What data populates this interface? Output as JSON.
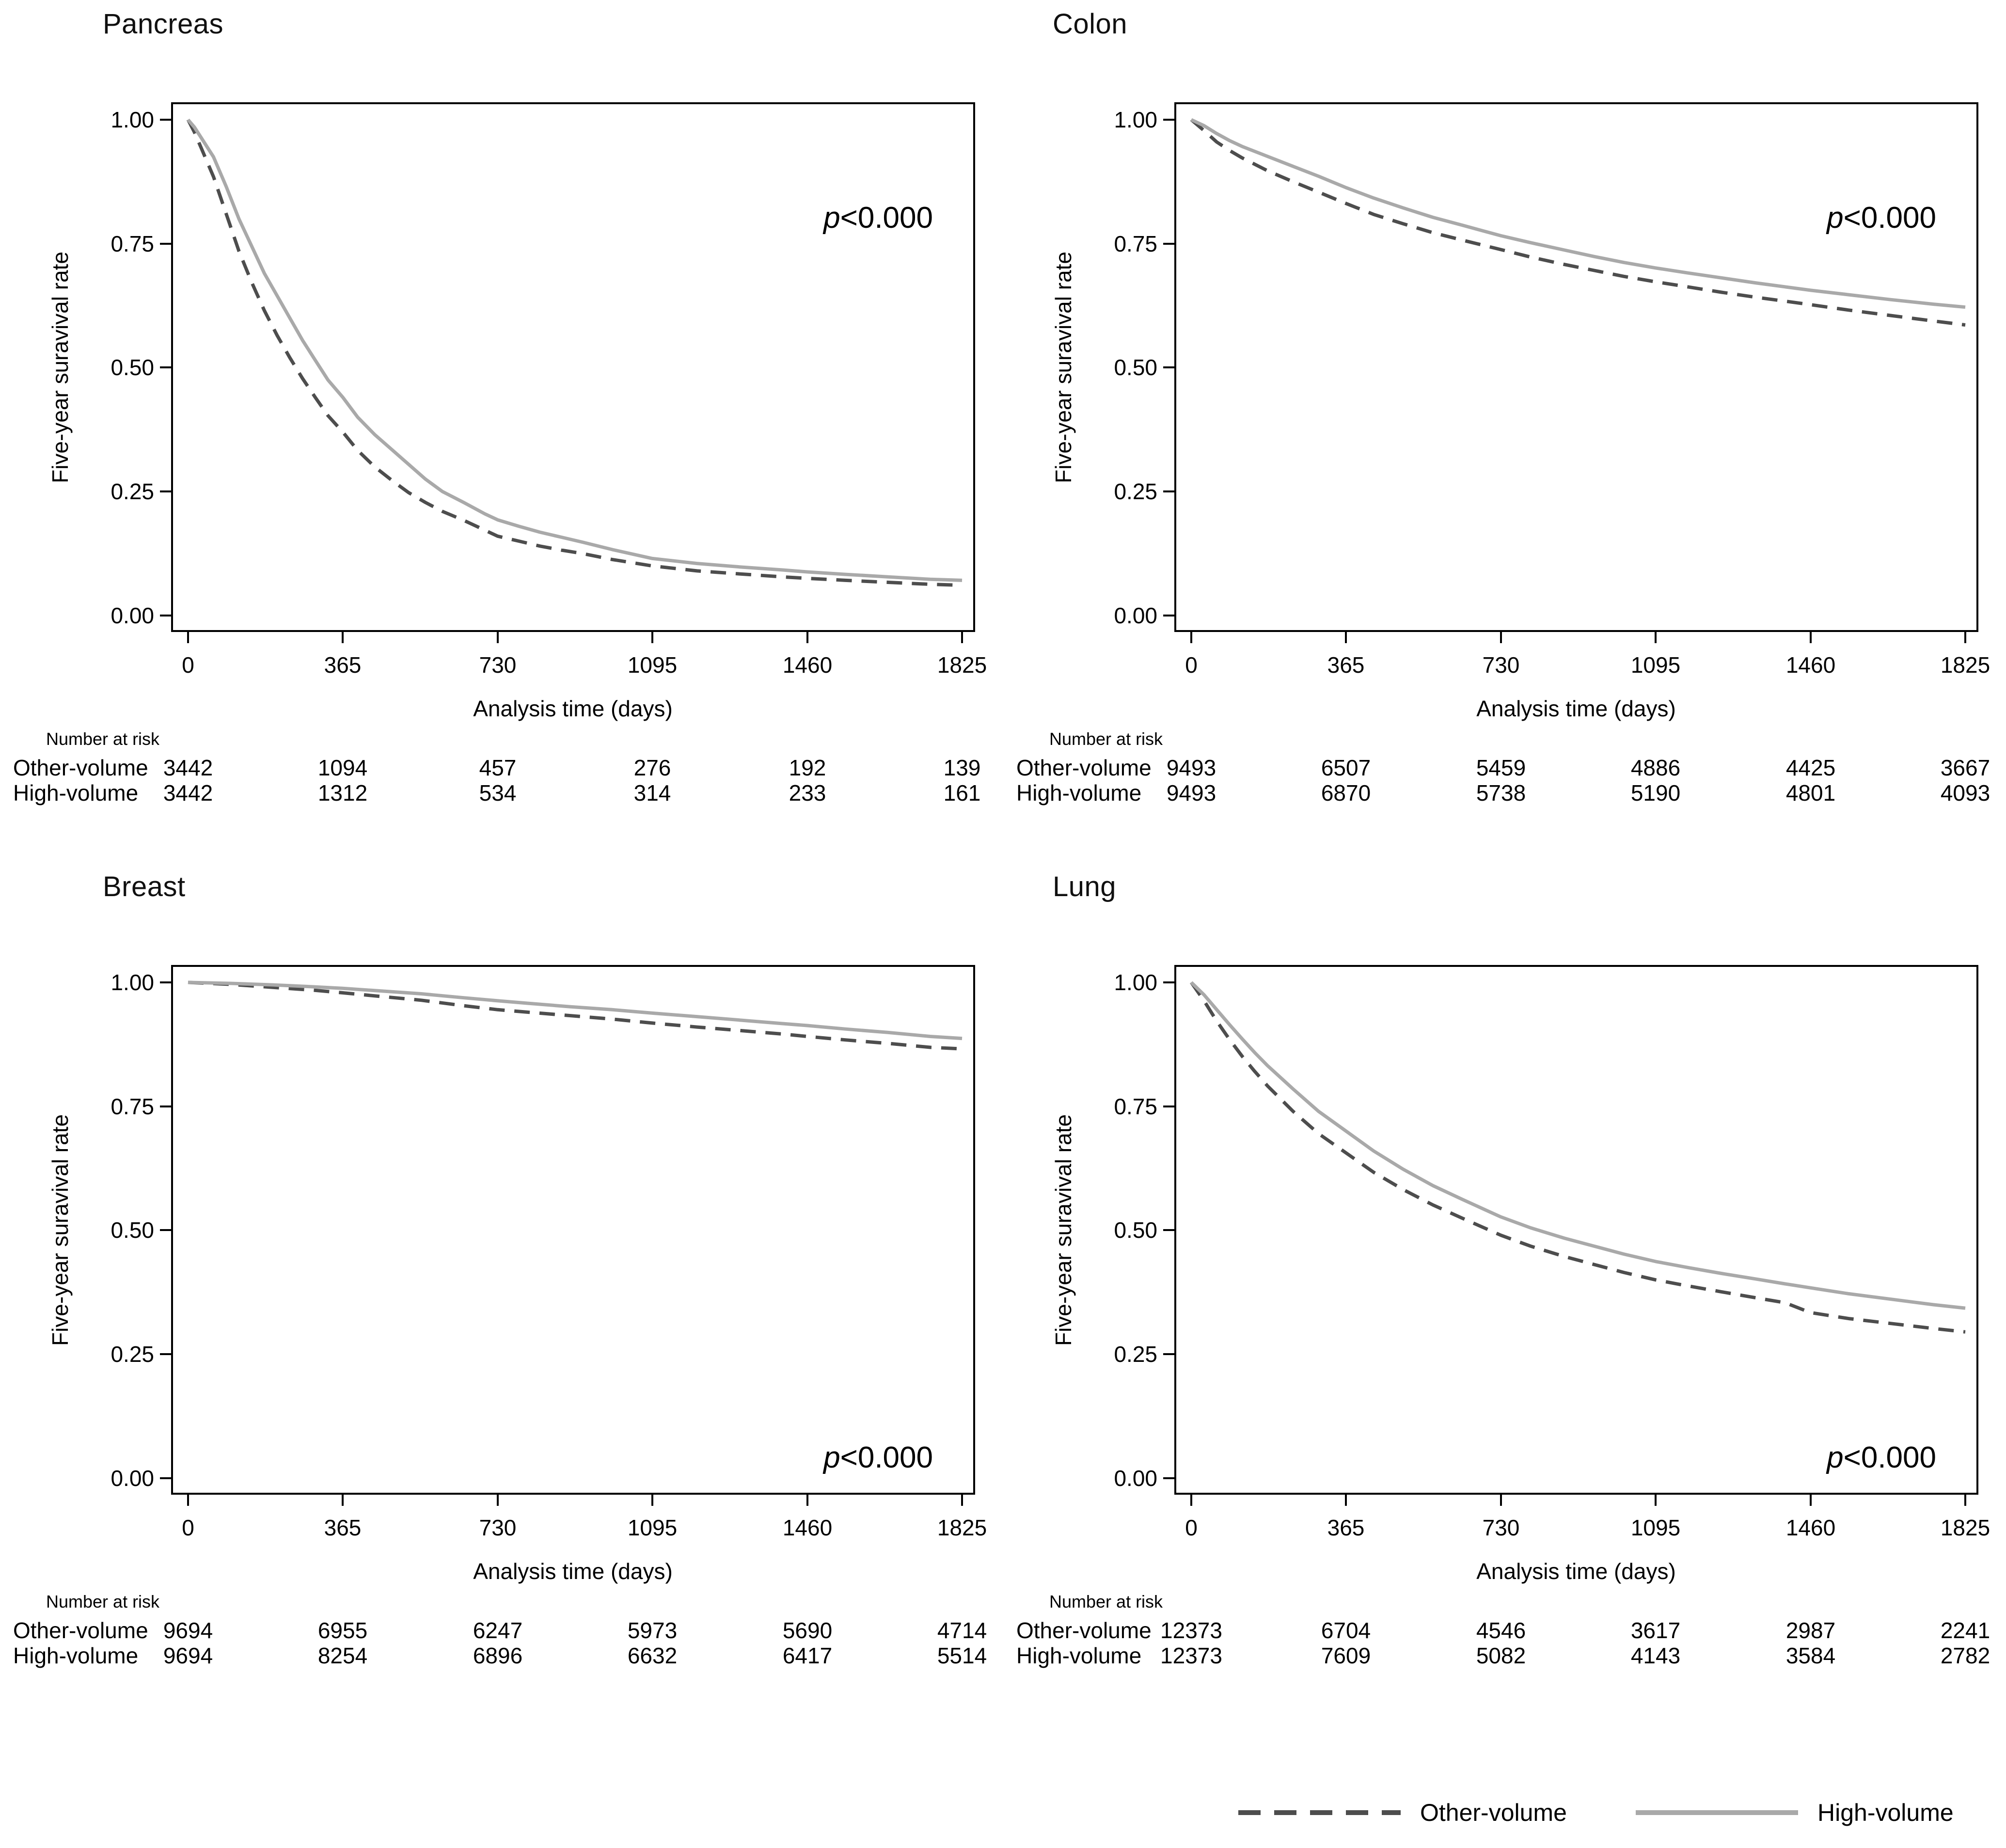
{
  "figure": {
    "background": "#ffffff"
  },
  "colors": {
    "high": "#a9a9a9",
    "other": "#4d4d4d",
    "axis": "#000000"
  },
  "legend": {
    "items": [
      {
        "label": "Other-volume",
        "style": "dashed",
        "color": "#4d4d4d"
      },
      {
        "label": "High-volume",
        "style": "solid",
        "color": "#a9a9a9"
      }
    ]
  },
  "chart_data": [
    {
      "type": "line",
      "title": "Pancreas",
      "xlabel": "Analysis time (days)",
      "ylabel": "Five-year suravival rate",
      "xlim": [
        0,
        1825
      ],
      "ylim": [
        0,
        1
      ],
      "xticks": [
        0,
        365,
        730,
        1095,
        1460,
        1825
      ],
      "yticks": [
        1.0,
        0.75,
        0.5,
        0.25,
        0.0
      ],
      "xtick_labels": [
        "0",
        "365",
        "730",
        "1095",
        "1460",
        "1825"
      ],
      "ytick_labels": [
        "1.00",
        "0.75",
        "0.50",
        "0.25",
        "0.00"
      ],
      "grid": false,
      "pvalue": "p<0.000",
      "pvalue_p": "p",
      "pvalue_rest": "<0.000",
      "pvalue_position": "top-right",
      "series": [
        {
          "name": "Other-volume",
          "style": "dashed",
          "color": "other",
          "x": [
            0,
            15,
            30,
            60,
            90,
            120,
            150,
            180,
            210,
            240,
            270,
            300,
            330,
            365,
            400,
            440,
            480,
            520,
            560,
            600,
            650,
            700,
            730,
            780,
            830,
            880,
            930,
            1000,
            1095,
            1200,
            1300,
            1400,
            1460,
            1550,
            1650,
            1750,
            1825
          ],
          "y": [
            1.0,
            0.975,
            0.945,
            0.885,
            0.81,
            0.735,
            0.672,
            0.615,
            0.565,
            0.52,
            0.478,
            0.44,
            0.403,
            0.37,
            0.333,
            0.3,
            0.273,
            0.248,
            0.228,
            0.21,
            0.192,
            0.172,
            0.16,
            0.15,
            0.14,
            0.132,
            0.125,
            0.113,
            0.1,
            0.09,
            0.084,
            0.078,
            0.075,
            0.071,
            0.067,
            0.063,
            0.061
          ]
        },
        {
          "name": "High-volume",
          "style": "solid",
          "color": "high",
          "x": [
            0,
            15,
            30,
            60,
            90,
            120,
            150,
            180,
            210,
            240,
            270,
            300,
            330,
            365,
            400,
            440,
            480,
            520,
            560,
            600,
            650,
            700,
            730,
            780,
            830,
            880,
            930,
            1000,
            1095,
            1200,
            1300,
            1400,
            1460,
            1550,
            1650,
            1750,
            1825
          ],
          "y": [
            1.0,
            0.985,
            0.965,
            0.925,
            0.865,
            0.8,
            0.745,
            0.69,
            0.645,
            0.6,
            0.555,
            0.515,
            0.475,
            0.44,
            0.4,
            0.365,
            0.335,
            0.305,
            0.275,
            0.25,
            0.228,
            0.205,
            0.193,
            0.18,
            0.168,
            0.158,
            0.148,
            0.133,
            0.115,
            0.105,
            0.098,
            0.092,
            0.088,
            0.083,
            0.078,
            0.073,
            0.071
          ]
        }
      ],
      "number_at_risk": {
        "header": "Number at risk",
        "times": [
          0,
          365,
          730,
          1095,
          1460,
          1825
        ],
        "rows": [
          {
            "label": "Other-volume",
            "values": [
              "3442",
              "1094",
              "457",
              "276",
              "192",
              "139"
            ]
          },
          {
            "label": "High-volume",
            "values": [
              "3442",
              "1312",
              "534",
              "314",
              "233",
              "161"
            ]
          }
        ]
      }
    },
    {
      "type": "line",
      "title": "Colon",
      "xlabel": "Analysis time (days)",
      "ylabel": "Five-year suravival rate",
      "xlim": [
        0,
        1825
      ],
      "ylim": [
        0,
        1
      ],
      "xticks": [
        0,
        365,
        730,
        1095,
        1460,
        1825
      ],
      "yticks": [
        1.0,
        0.75,
        0.5,
        0.25,
        0.0
      ],
      "xtick_labels": [
        "0",
        "365",
        "730",
        "1095",
        "1460",
        "1825"
      ],
      "ytick_labels": [
        "1.00",
        "0.75",
        "0.50",
        "0.25",
        "0.00"
      ],
      "grid": false,
      "pvalue": "p<0.000",
      "pvalue_p": "p",
      "pvalue_rest": "<0.000",
      "pvalue_position": "top-right",
      "series": [
        {
          "name": "Other-volume",
          "style": "dashed",
          "color": "other",
          "x": [
            0,
            30,
            60,
            90,
            120,
            150,
            180,
            240,
            300,
            365,
            430,
            500,
            570,
            640,
            730,
            800,
            880,
            950,
            1020,
            1095,
            1170,
            1250,
            1330,
            1400,
            1460,
            1550,
            1650,
            1750,
            1825
          ],
          "y": [
            1.0,
            0.978,
            0.955,
            0.938,
            0.923,
            0.91,
            0.897,
            0.875,
            0.854,
            0.831,
            0.809,
            0.79,
            0.772,
            0.757,
            0.738,
            0.723,
            0.708,
            0.696,
            0.684,
            0.673,
            0.663,
            0.652,
            0.642,
            0.634,
            0.627,
            0.616,
            0.605,
            0.594,
            0.586
          ]
        },
        {
          "name": "High-volume",
          "style": "solid",
          "color": "high",
          "x": [
            0,
            30,
            60,
            90,
            120,
            150,
            180,
            240,
            300,
            365,
            430,
            500,
            570,
            640,
            730,
            800,
            880,
            950,
            1020,
            1095,
            1170,
            1250,
            1330,
            1400,
            1460,
            1550,
            1650,
            1750,
            1825
          ],
          "y": [
            1.0,
            0.988,
            0.972,
            0.958,
            0.946,
            0.936,
            0.926,
            0.906,
            0.886,
            0.863,
            0.842,
            0.822,
            0.803,
            0.787,
            0.766,
            0.752,
            0.737,
            0.724,
            0.712,
            0.701,
            0.691,
            0.681,
            0.671,
            0.663,
            0.656,
            0.647,
            0.637,
            0.628,
            0.622
          ]
        }
      ],
      "number_at_risk": {
        "header": "Number at risk",
        "times": [
          0,
          365,
          730,
          1095,
          1460,
          1825
        ],
        "rows": [
          {
            "label": "Other-volume",
            "values": [
              "9493",
              "6507",
              "5459",
              "4886",
              "4425",
              "3667"
            ]
          },
          {
            "label": "High-volume",
            "values": [
              "9493",
              "6870",
              "5738",
              "5190",
              "4801",
              "4093"
            ]
          }
        ]
      }
    },
    {
      "type": "line",
      "title": "Breast",
      "xlabel": "Analysis time (days)",
      "ylabel": "Five-year suravival rate",
      "xlim": [
        0,
        1825
      ],
      "ylim": [
        0,
        1
      ],
      "xticks": [
        0,
        365,
        730,
        1095,
        1460,
        1825
      ],
      "yticks": [
        1.0,
        0.75,
        0.5,
        0.25,
        0.0
      ],
      "xtick_labels": [
        "0",
        "365",
        "730",
        "1095",
        "1460",
        "1825"
      ],
      "ytick_labels": [
        "1.00",
        "0.75",
        "0.50",
        "0.25",
        "0.00"
      ],
      "grid": false,
      "pvalue": "p<0.000",
      "pvalue_p": "p",
      "pvalue_rest": "<0.000",
      "pvalue_position": "bottom-right",
      "series": [
        {
          "name": "Other-volume",
          "style": "dashed",
          "color": "other",
          "x": [
            0,
            100,
            200,
            300,
            365,
            450,
            550,
            650,
            730,
            800,
            900,
            1000,
            1095,
            1200,
            1300,
            1400,
            1460,
            1550,
            1650,
            1750,
            1825
          ],
          "y": [
            1.0,
            0.996,
            0.99,
            0.984,
            0.979,
            0.972,
            0.964,
            0.953,
            0.945,
            0.94,
            0.933,
            0.926,
            0.918,
            0.91,
            0.903,
            0.896,
            0.891,
            0.884,
            0.877,
            0.869,
            0.866
          ]
        },
        {
          "name": "High-volume",
          "style": "solid",
          "color": "high",
          "x": [
            0,
            100,
            200,
            300,
            365,
            450,
            550,
            650,
            730,
            800,
            900,
            1000,
            1095,
            1200,
            1300,
            1400,
            1460,
            1550,
            1650,
            1750,
            1825
          ],
          "y": [
            1.0,
            0.998,
            0.995,
            0.991,
            0.988,
            0.983,
            0.977,
            0.969,
            0.963,
            0.958,
            0.951,
            0.945,
            0.938,
            0.931,
            0.924,
            0.917,
            0.913,
            0.906,
            0.899,
            0.891,
            0.887
          ]
        }
      ],
      "number_at_risk": {
        "header": "Number at risk",
        "times": [
          0,
          365,
          730,
          1095,
          1460,
          1825
        ],
        "rows": [
          {
            "label": "Other-volume",
            "values": [
              "9694",
              "6955",
              "6247",
              "5973",
              "5690",
              "4714"
            ]
          },
          {
            "label": "High-volume",
            "values": [
              "9694",
              "8254",
              "6896",
              "6632",
              "6417",
              "5514"
            ]
          }
        ]
      }
    },
    {
      "type": "line",
      "title": "Lung",
      "xlabel": "Analysis time (days)",
      "ylabel": "Five-year suravival rate",
      "xlim": [
        0,
        1825
      ],
      "ylim": [
        0,
        1
      ],
      "xticks": [
        0,
        365,
        730,
        1095,
        1460,
        1825
      ],
      "yticks": [
        1.0,
        0.75,
        0.5,
        0.25,
        0.0
      ],
      "xtick_labels": [
        "0",
        "365",
        "730",
        "1095",
        "1460",
        "1825"
      ],
      "ytick_labels": [
        "1.00",
        "0.75",
        "0.50",
        "0.25",
        "0.00"
      ],
      "grid": false,
      "pvalue": "p<0.000",
      "pvalue_p": "p",
      "pvalue_rest": "<0.000",
      "pvalue_position": "bottom-right",
      "series": [
        {
          "name": "Other-volume",
          "style": "dashed",
          "color": "other",
          "x": [
            0,
            30,
            60,
            90,
            120,
            150,
            180,
            240,
            300,
            365,
            430,
            500,
            570,
            640,
            730,
            800,
            880,
            950,
            1020,
            1095,
            1170,
            1250,
            1330,
            1400,
            1460,
            1550,
            1650,
            1750,
            1825
          ],
          "y": [
            1.0,
            0.963,
            0.922,
            0.885,
            0.851,
            0.82,
            0.791,
            0.74,
            0.695,
            0.656,
            0.617,
            0.582,
            0.551,
            0.524,
            0.49,
            0.468,
            0.447,
            0.431,
            0.415,
            0.4,
            0.388,
            0.376,
            0.364,
            0.354,
            0.334,
            0.322,
            0.312,
            0.302,
            0.295
          ]
        },
        {
          "name": "High-volume",
          "style": "solid",
          "color": "high",
          "x": [
            0,
            30,
            60,
            90,
            120,
            150,
            180,
            240,
            300,
            365,
            430,
            500,
            570,
            640,
            730,
            800,
            880,
            950,
            1020,
            1095,
            1170,
            1250,
            1330,
            1400,
            1460,
            1550,
            1650,
            1750,
            1825
          ],
          "y": [
            1.0,
            0.975,
            0.945,
            0.915,
            0.886,
            0.858,
            0.832,
            0.785,
            0.74,
            0.7,
            0.66,
            0.623,
            0.59,
            0.562,
            0.527,
            0.505,
            0.484,
            0.468,
            0.452,
            0.437,
            0.425,
            0.413,
            0.402,
            0.392,
            0.384,
            0.372,
            0.361,
            0.35,
            0.343
          ]
        }
      ],
      "number_at_risk": {
        "header": "Number at risk",
        "times": [
          0,
          365,
          730,
          1095,
          1460,
          1825
        ],
        "rows": [
          {
            "label": "Other-volume",
            "values": [
              "12373",
              "6704",
              "4546",
              "3617",
              "2987",
              "2241"
            ]
          },
          {
            "label": "High-volume",
            "values": [
              "12373",
              "7609",
              "5082",
              "4143",
              "3584",
              "2782"
            ]
          }
        ]
      }
    }
  ]
}
